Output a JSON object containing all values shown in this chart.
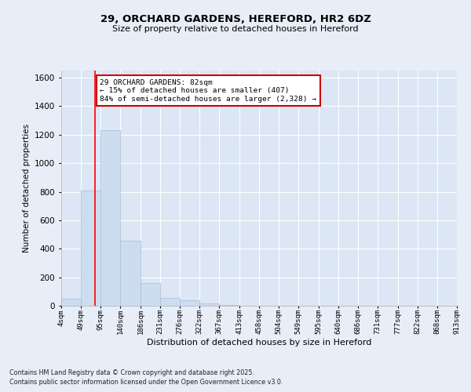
{
  "title": "29, ORCHARD GARDENS, HEREFORD, HR2 6DZ",
  "subtitle": "Size of property relative to detached houses in Hereford",
  "xlabel": "Distribution of detached houses by size in Hereford",
  "ylabel": "Number of detached properties",
  "bar_color": "#ccddf0",
  "bar_edge_color": "#aabbd8",
  "background_color": "#dce6f5",
  "fig_background_color": "#e8eef8",
  "grid_color": "#ffffff",
  "bin_edges": [
    4,
    49,
    95,
    140,
    186,
    231,
    276,
    322,
    367,
    413,
    458,
    504,
    549,
    595,
    640,
    686,
    731,
    777,
    822,
    868,
    913
  ],
  "bin_labels": [
    "4sqm",
    "49sqm",
    "95sqm",
    "140sqm",
    "186sqm",
    "231sqm",
    "276sqm",
    "322sqm",
    "367sqm",
    "413sqm",
    "458sqm",
    "504sqm",
    "549sqm",
    "595sqm",
    "640sqm",
    "686sqm",
    "731sqm",
    "777sqm",
    "822sqm",
    "868sqm",
    "913sqm"
  ],
  "counts": [
    50,
    810,
    1230,
    455,
    160,
    55,
    40,
    15,
    5,
    2,
    1,
    0,
    0,
    0,
    0,
    0,
    0,
    0,
    0,
    0
  ],
  "red_line_x": 82,
  "annotation_text": "29 ORCHARD GARDENS: 82sqm\n← 15% of detached houses are smaller (407)\n84% of semi-detached houses are larger (2,328) →",
  "annotation_box_color": "#ffffff",
  "annotation_box_edge_color": "#cc0000",
  "ylim": [
    0,
    1650
  ],
  "yticks": [
    0,
    200,
    400,
    600,
    800,
    1000,
    1200,
    1400,
    1600
  ],
  "footer_line1": "Contains HM Land Registry data © Crown copyright and database right 2025.",
  "footer_line2": "Contains public sector information licensed under the Open Government Licence v3.0."
}
